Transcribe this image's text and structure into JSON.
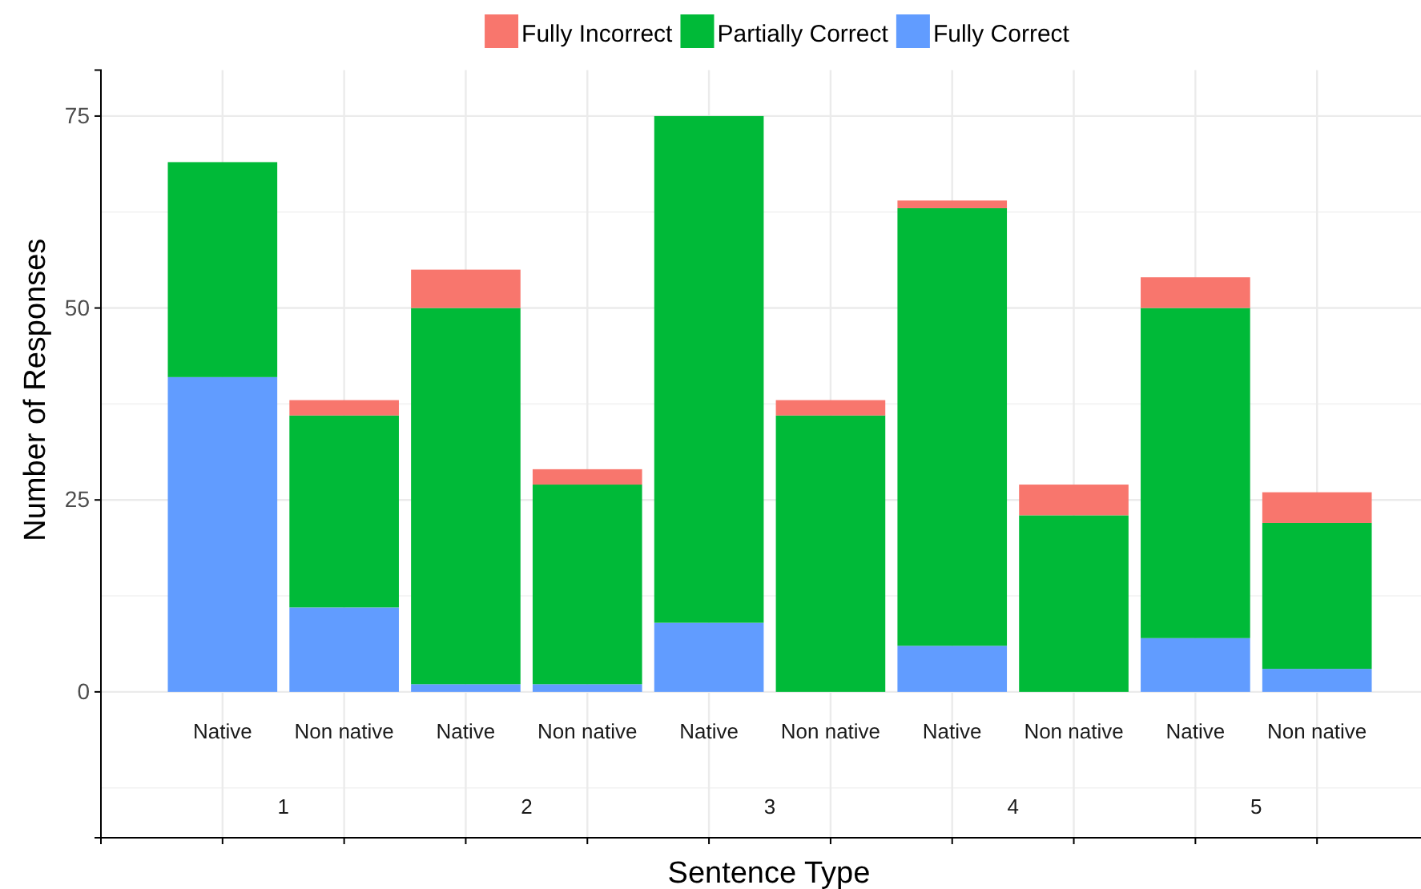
{
  "chart_data": {
    "type": "bar",
    "stacked": true,
    "xlabel": "Sentence Type",
    "ylabel": "Number of Responses",
    "categories": [
      "Native",
      "Non native",
      "Native",
      "Non native",
      "Native",
      "Non native",
      "Native",
      "Non native",
      "Native",
      "Non native"
    ],
    "series": [
      {
        "name": "Fully Correct",
        "color": "#619cff",
        "values": [
          41,
          11,
          1,
          1,
          9,
          0,
          6,
          0,
          7,
          3
        ]
      },
      {
        "name": "Partially Correct",
        "color": "#00ba38",
        "values": [
          28,
          25,
          49,
          26,
          66,
          36,
          57,
          23,
          43,
          19
        ]
      },
      {
        "name": "Fully Incorrect",
        "color": "#f8766d",
        "values": [
          0,
          2,
          5,
          2,
          0,
          2,
          1,
          4,
          4,
          4
        ]
      }
    ],
    "annotations": [
      "1",
      "2",
      "3",
      "4",
      "5"
    ],
    "ylim": [
      -19,
      81
    ],
    "yticks": [
      0,
      25,
      50,
      75
    ],
    "grid": true,
    "legend": "top"
  }
}
